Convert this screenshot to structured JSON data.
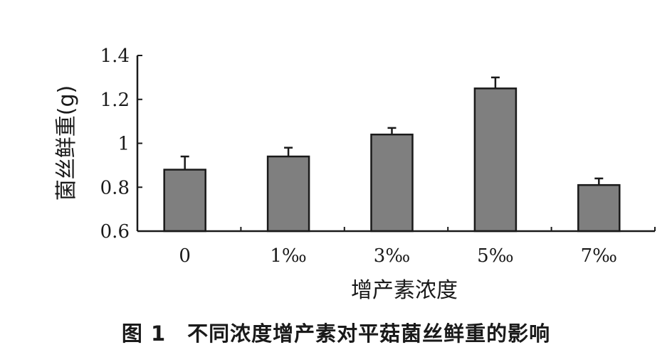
{
  "chart_data": {
    "type": "bar",
    "categories": [
      "0",
      "1‰",
      "3‰",
      "5‰",
      "7‰"
    ],
    "values": [
      0.88,
      0.94,
      1.04,
      1.25,
      0.81
    ],
    "errors": [
      0.06,
      0.04,
      0.03,
      0.05,
      0.03
    ],
    "xlabel": "增产素浓度",
    "ylabel": "菌丝鲜重(g)",
    "ylim": [
      0.6,
      1.4
    ],
    "yticks": [
      "0.6",
      "0.8",
      "1",
      "1.2",
      "1.4"
    ],
    "grid": false,
    "legend": "none",
    "bar_color": "#7f7f7f"
  },
  "caption": "图 1　不同浓度增产素对平菇菌丝鲜重的影响"
}
